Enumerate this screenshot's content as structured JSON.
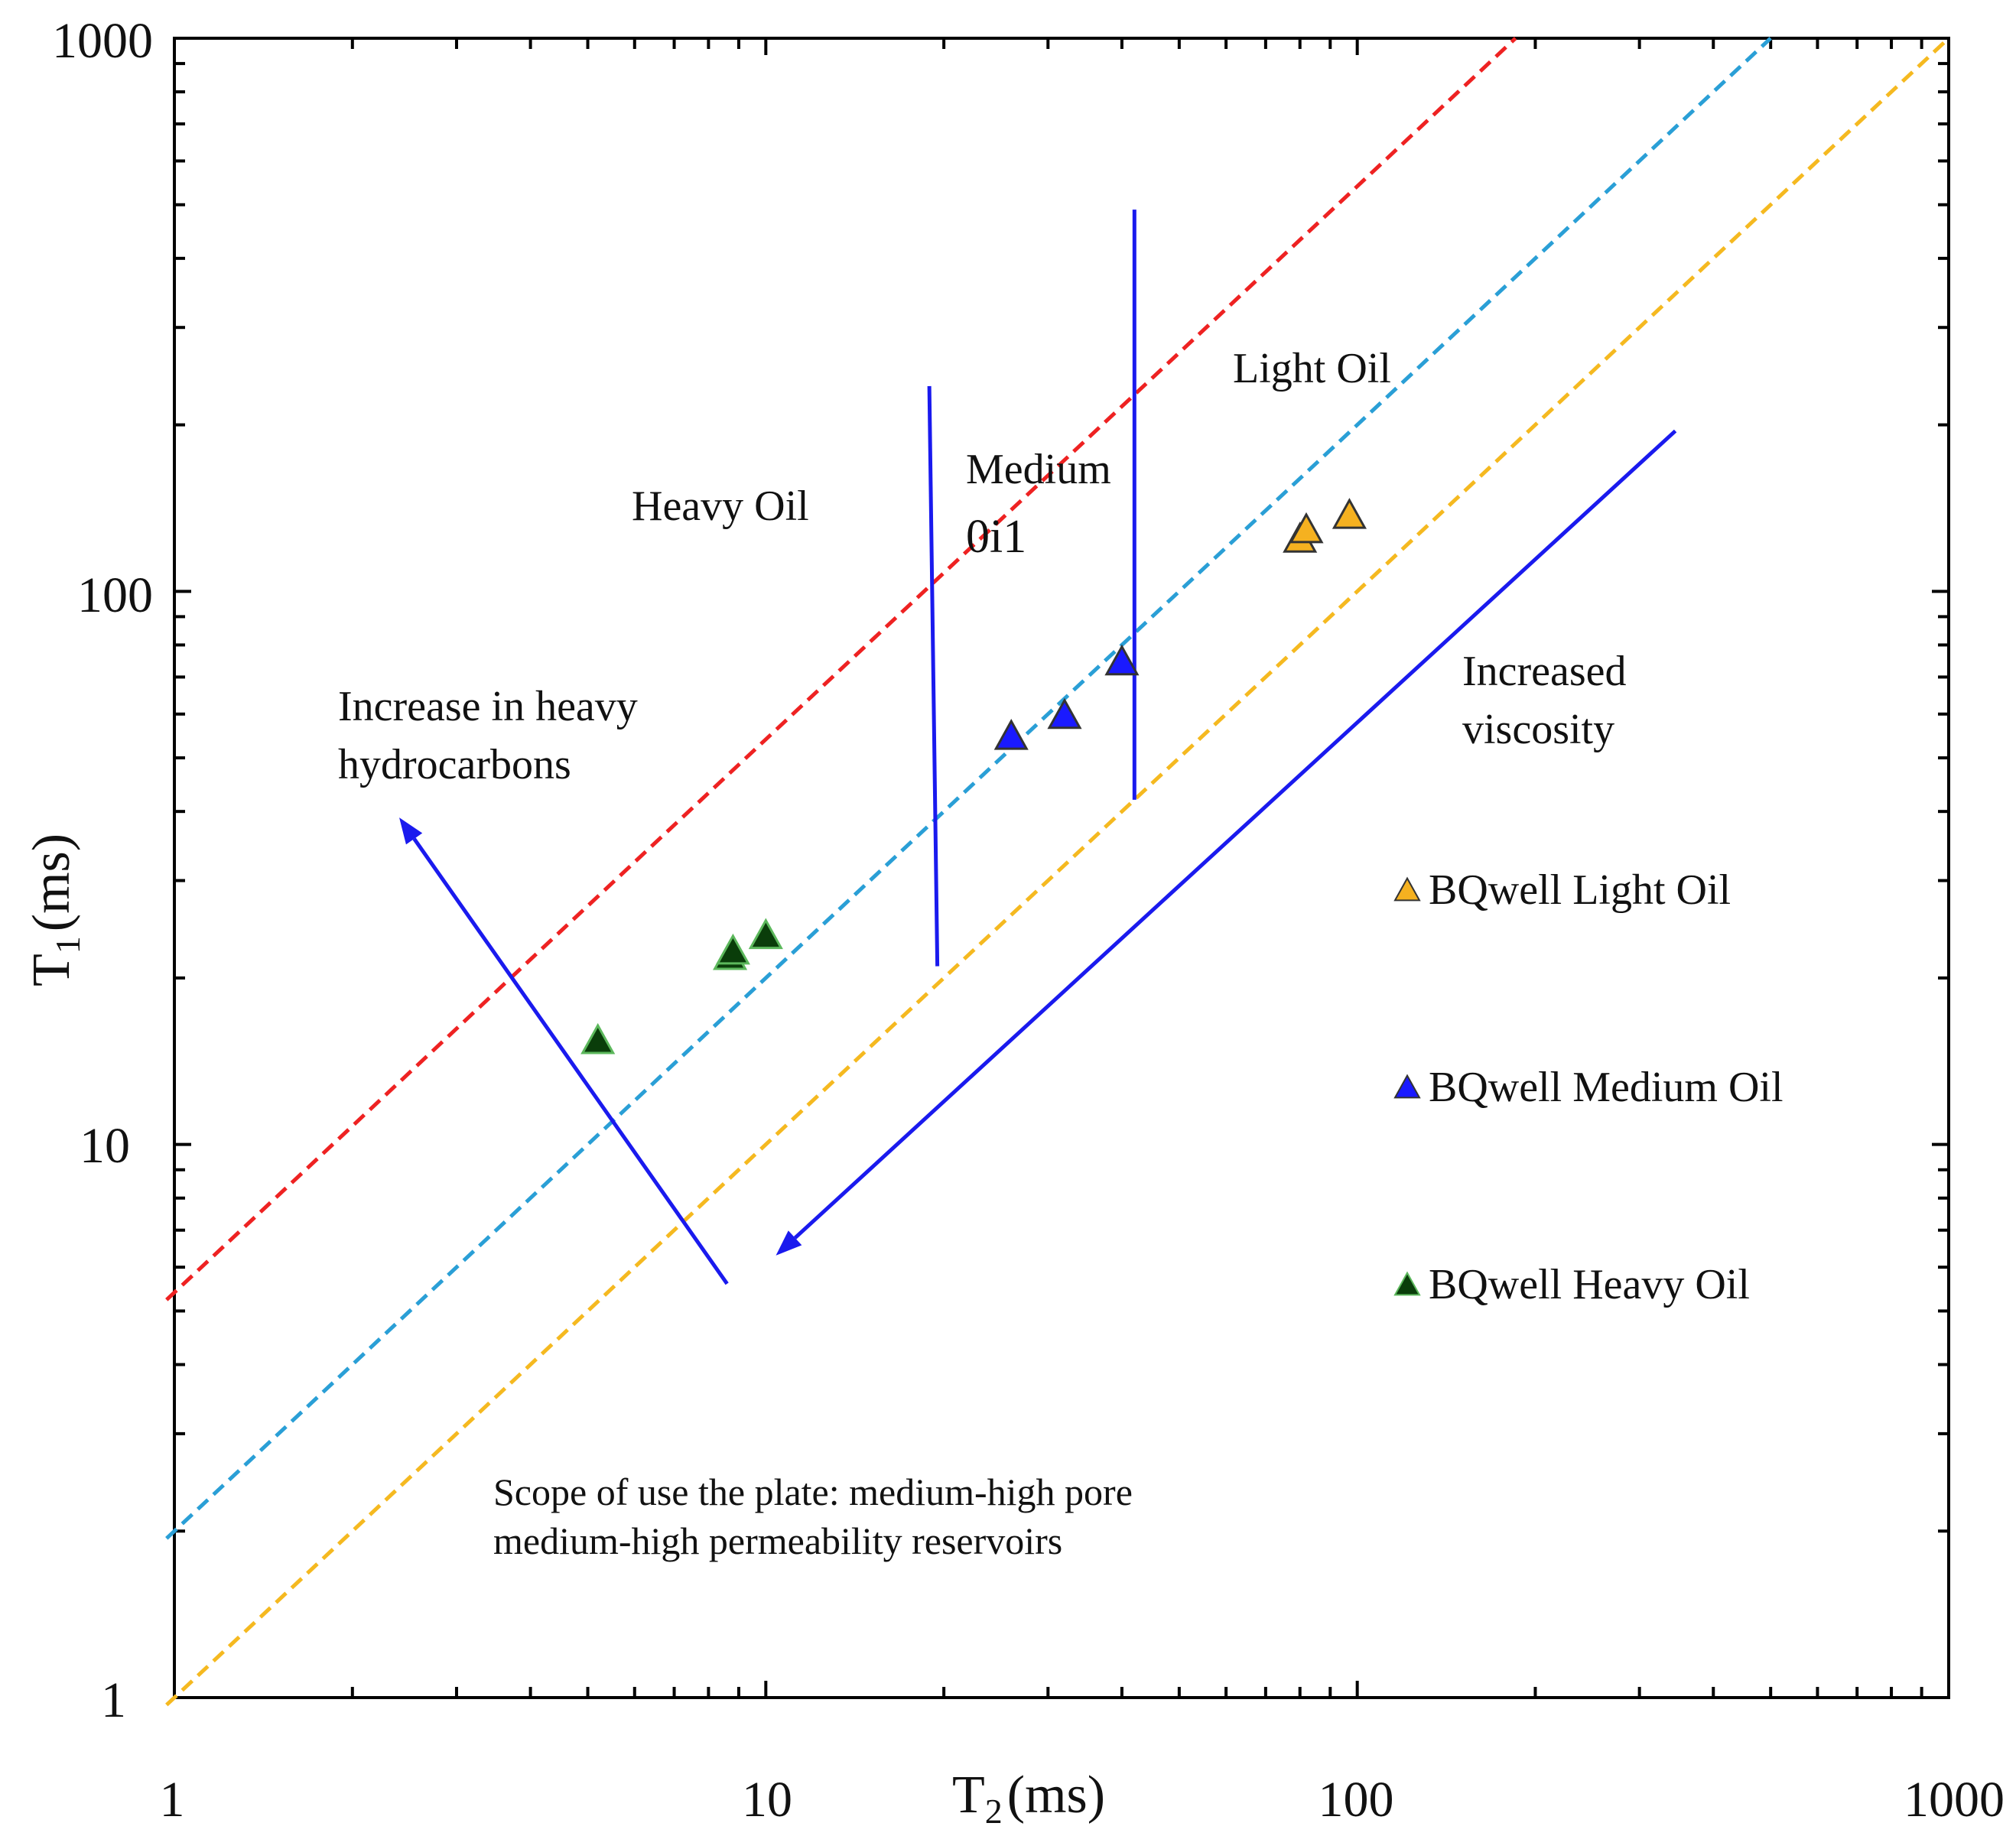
{
  "chart_data": {
    "type": "scatter",
    "xscale": "log",
    "yscale": "log",
    "xlim": [
      1,
      1000
    ],
    "ylim": [
      1,
      1000
    ],
    "x_ticks": [
      "1",
      "10",
      "100",
      "1000"
    ],
    "y_ticks": [
      "1",
      "10",
      "100",
      "1000"
    ],
    "xlabel": {
      "main": "T",
      "sub": "2",
      "unit": "(ms)"
    },
    "ylabel": {
      "main": "T",
      "sub": "1",
      "unit": "(ms)"
    },
    "series": [
      {
        "name": "BQwell Light Oil",
        "marker": "triangle",
        "color": "#f5b120",
        "points": [
          [
            80,
            125
          ],
          [
            82,
            130
          ],
          [
            97,
            138
          ]
        ]
      },
      {
        "name": "BQwell Medium Oil",
        "marker": "triangle",
        "color": "#1a1aff",
        "points": [
          [
            26,
            55
          ],
          [
            32,
            60
          ],
          [
            40,
            75
          ]
        ]
      },
      {
        "name": "BQwell Heavy Oil",
        "marker": "triangle",
        "color": "#0a3d0a",
        "points": [
          [
            5.2,
            15.5
          ],
          [
            8.7,
            22
          ],
          [
            8.8,
            22.5
          ],
          [
            10,
            24
          ]
        ]
      }
    ],
    "reference_lines": [
      {
        "name": "red-dashed",
        "ratio_T1_T2": 5.4,
        "color": "#ee2222"
      },
      {
        "name": "blue-dashed",
        "ratio_T1_T2": 2,
        "color": "#2a9fd6"
      },
      {
        "name": "yellow-dashed",
        "ratio_T1_T2": 1,
        "color": "#f5b920"
      }
    ],
    "dividers": [
      {
        "name": "heavy-medium-boundary",
        "from": [
          18.9,
          235
        ],
        "to": [
          19.5,
          21
        ]
      },
      {
        "name": "medium-light-boundary",
        "from": [
          42,
          490
        ],
        "to": [
          42,
          42
        ]
      }
    ],
    "arrows": [
      {
        "name": "heavy-hydrocarbons-arrow",
        "from": [
          8.6,
          5.6
        ],
        "to": [
          2.4,
          39
        ]
      },
      {
        "name": "viscosity-arrow",
        "from": [
          345,
          195
        ],
        "to": [
          10.4,
          6.3
        ]
      }
    ],
    "annotations": {
      "heavy_oil": "Heavy  Oil",
      "medium_oil_1": "Medium",
      "medium_oil_2": "0i1",
      "light_oil": "Light  Oil",
      "increase_heavy_1": "Increase in heavy",
      "increase_heavy_2": "hydrocarbons",
      "viscosity_1": "Increased",
      "viscosity_2": "viscosity",
      "scope_1": "Scope of use the plate: medium-high pore",
      "scope_2": "medium-high permeability  reservoirs"
    },
    "legend": {
      "placement": "right",
      "entries": [
        "BQwell Light Oil",
        "BQwell Medium Oil",
        "BQwell Heavy Oil"
      ]
    }
  }
}
